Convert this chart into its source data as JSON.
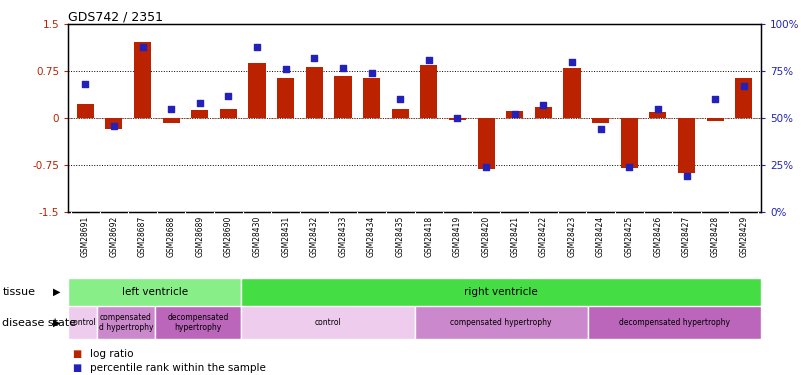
{
  "title": "GDS742 / 2351",
  "samples": [
    "GSM28691",
    "GSM28692",
    "GSM28687",
    "GSM28688",
    "GSM28689",
    "GSM28690",
    "GSM28430",
    "GSM28431",
    "GSM28432",
    "GSM28433",
    "GSM28434",
    "GSM28435",
    "GSM28418",
    "GSM28419",
    "GSM28420",
    "GSM28421",
    "GSM28422",
    "GSM28423",
    "GSM28424",
    "GSM28425",
    "GSM28426",
    "GSM28427",
    "GSM28428",
    "GSM28429"
  ],
  "log_ratio": [
    0.22,
    -0.18,
    1.22,
    -0.08,
    0.13,
    0.14,
    0.88,
    0.65,
    0.82,
    0.68,
    0.65,
    0.14,
    0.85,
    -0.03,
    -0.82,
    0.12,
    0.18,
    0.8,
    -0.07,
    -0.8,
    0.1,
    -0.88,
    -0.04,
    0.65
  ],
  "pct_rank": [
    68,
    46,
    88,
    55,
    58,
    62,
    88,
    76,
    82,
    77,
    74,
    60,
    81,
    50,
    24,
    52,
    57,
    80,
    44,
    24,
    55,
    19,
    60,
    67
  ],
  "bar_color": "#bb2200",
  "dot_color": "#2222bb",
  "ylim_left": [
    -1.5,
    1.5
  ],
  "ylim_right": [
    0,
    100
  ],
  "yticks_left": [
    -1.5,
    -0.75,
    0,
    0.75,
    1.5
  ],
  "yticks_right": [
    0,
    25,
    50,
    75,
    100
  ],
  "ytick_labels_left": [
    "-1.5",
    "-0.75",
    "0",
    "0.75",
    "1.5"
  ],
  "ytick_labels_right": [
    "0%",
    "25%",
    "50%",
    "75%",
    "100%"
  ],
  "hlines_black": [
    0.75,
    -0.75
  ],
  "hline_red": 0.0,
  "tissue_labels": [
    {
      "text": "left ventricle",
      "start": 0,
      "end": 5,
      "color": "#88ee88"
    },
    {
      "text": "right ventricle",
      "start": 6,
      "end": 23,
      "color": "#44dd44"
    }
  ],
  "disease_labels": [
    {
      "text": "control",
      "start": 0,
      "end": 0,
      "color": "#eeccee"
    },
    {
      "text": "compensated\nd hypertrophy",
      "start": 1,
      "end": 2,
      "color": "#cc88cc"
    },
    {
      "text": "decompensated\nhypertrophy",
      "start": 3,
      "end": 5,
      "color": "#bb66bb"
    },
    {
      "text": "control",
      "start": 6,
      "end": 11,
      "color": "#eeccee"
    },
    {
      "text": "compensated hypertrophy",
      "start": 12,
      "end": 17,
      "color": "#cc88cc"
    },
    {
      "text": "decompensated hypertrophy",
      "start": 18,
      "end": 23,
      "color": "#bb66bb"
    }
  ],
  "tissue_arrow_label": "tissue",
  "disease_arrow_label": "disease state",
  "legend_entries": [
    {
      "label": "log ratio",
      "color": "#bb2200"
    },
    {
      "label": "percentile rank within the sample",
      "color": "#2222bb"
    }
  ],
  "bg_color": "#ffffff",
  "bar_width": 0.6,
  "n_samples": 24
}
